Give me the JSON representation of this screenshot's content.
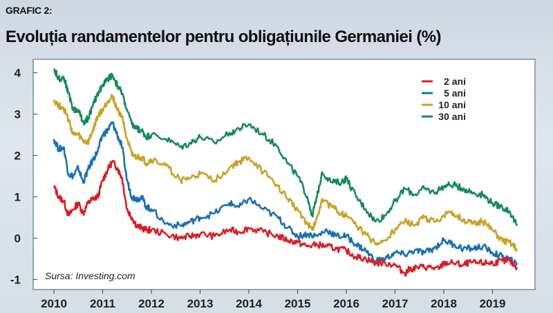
{
  "header": {
    "label": "GRAFIC 2:",
    "title": "Evoluția randamentelor pentru obligațiunile Germaniei (%)"
  },
  "chart_data": {
    "type": "line",
    "title": "Evoluția randamentelor pentru obligațiunile Germaniei (%)",
    "xlabel": "",
    "ylabel": "",
    "xlim": [
      2010,
      2019.55
    ],
    "ylim": [
      -1.05,
      4.3
    ],
    "x_ticks": [
      "2010",
      "2011",
      "2012",
      "2013",
      "2014",
      "2015",
      "2016",
      "2017",
      "2018",
      "2019"
    ],
    "y_ticks": [
      "4",
      "3",
      "2",
      "1",
      "0",
      "-1"
    ],
    "grid": false,
    "legend_position": "top-right",
    "source": "Sursa: Investing.com",
    "series": [
      {
        "name": "2 ani",
        "color": "#d62027",
        "x": [
          2010.0,
          2010.1,
          2010.2,
          2010.3,
          2010.4,
          2010.5,
          2010.6,
          2010.7,
          2010.8,
          2010.9,
          2011.0,
          2011.1,
          2011.2,
          2011.3,
          2011.4,
          2011.5,
          2011.6,
          2011.7,
          2011.8,
          2011.9,
          2012.0,
          2012.3,
          2012.6,
          2012.8,
          2013.0,
          2013.3,
          2013.6,
          2013.8,
          2014.0,
          2014.3,
          2014.6,
          2014.8,
          2015.0,
          2015.2,
          2015.4,
          2015.6,
          2015.8,
          2016.0,
          2016.2,
          2016.4,
          2016.6,
          2016.8,
          2017.0,
          2017.2,
          2017.3,
          2017.5,
          2017.7,
          2017.9,
          2018.0,
          2018.2,
          2018.4,
          2018.5,
          2018.7,
          2018.9,
          2019.0,
          2019.2,
          2019.35,
          2019.5
        ],
        "values": [
          1.25,
          1.0,
          0.9,
          0.55,
          0.7,
          0.85,
          0.6,
          0.85,
          0.95,
          1.0,
          1.4,
          1.65,
          1.85,
          1.7,
          1.45,
          0.7,
          0.5,
          0.3,
          0.25,
          0.2,
          0.2,
          0.1,
          0.0,
          0.05,
          0.1,
          0.05,
          0.2,
          0.15,
          0.25,
          0.15,
          0.05,
          -0.05,
          -0.1,
          -0.2,
          -0.15,
          -0.2,
          -0.25,
          -0.3,
          -0.45,
          -0.5,
          -0.6,
          -0.6,
          -0.65,
          -0.85,
          -0.75,
          -0.7,
          -0.7,
          -0.75,
          -0.6,
          -0.6,
          -0.65,
          -0.6,
          -0.6,
          -0.6,
          -0.6,
          -0.55,
          -0.55,
          -0.7
        ]
      },
      {
        "name": "5 ani",
        "color": "#1b6fb0",
        "x": [
          2010.0,
          2010.1,
          2010.2,
          2010.3,
          2010.4,
          2010.5,
          2010.6,
          2010.7,
          2010.8,
          2010.9,
          2011.0,
          2011.1,
          2011.2,
          2011.3,
          2011.4,
          2011.5,
          2011.6,
          2011.7,
          2011.8,
          2011.9,
          2012.0,
          2012.3,
          2012.6,
          2012.8,
          2013.0,
          2013.3,
          2013.6,
          2013.8,
          2014.0,
          2014.3,
          2014.6,
          2014.8,
          2015.0,
          2015.2,
          2015.4,
          2015.6,
          2015.8,
          2016.0,
          2016.2,
          2016.4,
          2016.6,
          2016.8,
          2017.0,
          2017.2,
          2017.4,
          2017.6,
          2017.8,
          2018.0,
          2018.2,
          2018.4,
          2018.6,
          2018.8,
          2019.0,
          2019.2,
          2019.35,
          2019.5
        ],
        "values": [
          2.4,
          2.15,
          2.2,
          1.55,
          1.5,
          1.7,
          1.35,
          1.65,
          1.9,
          2.1,
          2.5,
          2.6,
          2.8,
          2.5,
          2.2,
          1.4,
          1.0,
          0.95,
          1.0,
          0.75,
          0.7,
          0.35,
          0.3,
          0.4,
          0.5,
          0.6,
          0.85,
          0.75,
          0.95,
          0.7,
          0.5,
          0.25,
          0.05,
          0.1,
          0.05,
          0.2,
          0.05,
          0.05,
          -0.15,
          -0.3,
          -0.55,
          -0.5,
          -0.35,
          -0.4,
          -0.3,
          -0.35,
          -0.25,
          -0.05,
          -0.15,
          -0.25,
          -0.25,
          -0.2,
          -0.35,
          -0.45,
          -0.5,
          -0.65
        ]
      },
      {
        "name": "10 ani",
        "color": "#c9a227",
        "x": [
          2010.0,
          2010.1,
          2010.2,
          2010.3,
          2010.4,
          2010.5,
          2010.6,
          2010.7,
          2010.8,
          2010.9,
          2011.0,
          2011.1,
          2011.2,
          2011.3,
          2011.4,
          2011.5,
          2011.6,
          2011.7,
          2011.8,
          2011.9,
          2012.0,
          2012.3,
          2012.6,
          2012.8,
          2013.0,
          2013.3,
          2013.6,
          2013.8,
          2014.0,
          2014.3,
          2014.6,
          2014.8,
          2015.0,
          2015.2,
          2015.3,
          2015.4,
          2015.5,
          2015.7,
          2015.9,
          2016.0,
          2016.2,
          2016.4,
          2016.6,
          2016.8,
          2017.0,
          2017.2,
          2017.4,
          2017.6,
          2017.8,
          2018.0,
          2018.2,
          2018.4,
          2018.6,
          2018.8,
          2019.0,
          2019.2,
          2019.35,
          2019.5
        ],
        "values": [
          3.35,
          3.2,
          3.15,
          2.85,
          2.5,
          2.5,
          2.35,
          2.3,
          2.6,
          2.95,
          3.1,
          3.3,
          3.45,
          3.1,
          2.95,
          2.4,
          2.0,
          1.95,
          1.95,
          1.8,
          1.9,
          1.75,
          1.4,
          1.45,
          1.55,
          1.4,
          1.7,
          1.85,
          1.95,
          1.6,
          1.25,
          0.95,
          0.7,
          0.35,
          0.2,
          0.5,
          0.95,
          0.75,
          0.6,
          0.55,
          0.3,
          0.1,
          -0.15,
          -0.05,
          0.2,
          0.4,
          0.3,
          0.5,
          0.4,
          0.55,
          0.6,
          0.45,
          0.35,
          0.4,
          0.2,
          -0.05,
          -0.1,
          -0.25
        ]
      },
      {
        "name": "30 ani",
        "color": "#17895a",
        "x": [
          2010.0,
          2010.1,
          2010.2,
          2010.3,
          2010.4,
          2010.5,
          2010.6,
          2010.7,
          2010.8,
          2010.9,
          2011.0,
          2011.1,
          2011.2,
          2011.3,
          2011.4,
          2011.5,
          2011.6,
          2011.7,
          2011.8,
          2011.9,
          2012.0,
          2012.3,
          2012.6,
          2012.8,
          2013.0,
          2013.3,
          2013.6,
          2013.8,
          2014.0,
          2014.3,
          2014.6,
          2014.8,
          2015.0,
          2015.2,
          2015.3,
          2015.4,
          2015.5,
          2015.7,
          2015.9,
          2016.0,
          2016.2,
          2016.4,
          2016.6,
          2016.8,
          2017.0,
          2017.2,
          2017.4,
          2017.6,
          2017.8,
          2018.0,
          2018.2,
          2018.4,
          2018.6,
          2018.8,
          2019.0,
          2019.2,
          2019.35,
          2019.5
        ],
        "values": [
          4.1,
          3.85,
          3.9,
          3.5,
          3.1,
          3.1,
          2.8,
          2.9,
          3.2,
          3.5,
          3.7,
          3.85,
          3.95,
          3.7,
          3.5,
          3.1,
          2.75,
          2.65,
          2.6,
          2.45,
          2.5,
          2.4,
          2.2,
          2.3,
          2.45,
          2.3,
          2.55,
          2.65,
          2.75,
          2.5,
          2.2,
          1.8,
          1.5,
          1.0,
          0.55,
          1.0,
          1.6,
          1.35,
          1.35,
          1.45,
          1.0,
          0.7,
          0.4,
          0.55,
          0.9,
          1.2,
          1.05,
          1.2,
          1.1,
          1.25,
          1.3,
          1.2,
          1.1,
          1.05,
          0.85,
          0.75,
          0.65,
          0.3
        ]
      }
    ]
  }
}
